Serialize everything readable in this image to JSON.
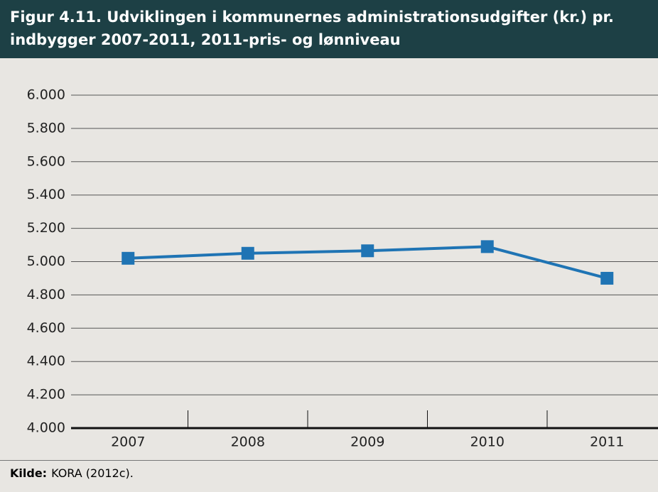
{
  "chart_data": {
    "type": "line",
    "title": "Figur 4.11. Udviklingen i kommunernes administrationsudgifter (kr.) pr. indbygger 2007-2011, 2011-pris- og lønniveau",
    "categories": [
      "2007",
      "2008",
      "2009",
      "2010",
      "2011"
    ],
    "series": [
      {
        "name": "Administrationsudgifter",
        "color": "#1f74b4",
        "values": [
          5020,
          5050,
          5065,
          5090,
          4900
        ]
      }
    ],
    "ylim": [
      4000,
      6000
    ],
    "yticks": [
      {
        "value": 4000,
        "label": "4.000"
      },
      {
        "value": 4200,
        "label": "4.200"
      },
      {
        "value": 4400,
        "label": "4.400"
      },
      {
        "value": 4600,
        "label": "4.600"
      },
      {
        "value": 4800,
        "label": "4.800"
      },
      {
        "value": 5000,
        "label": "5.000"
      },
      {
        "value": 5200,
        "label": "5.200"
      },
      {
        "value": 5400,
        "label": "5.400"
      },
      {
        "value": 5600,
        "label": "5.600"
      },
      {
        "value": 5800,
        "label": "5.800"
      },
      {
        "value": 6000,
        "label": "6.000"
      }
    ],
    "grid": true,
    "source_label": "Kilde:",
    "source": "KORA (2012c)."
  }
}
